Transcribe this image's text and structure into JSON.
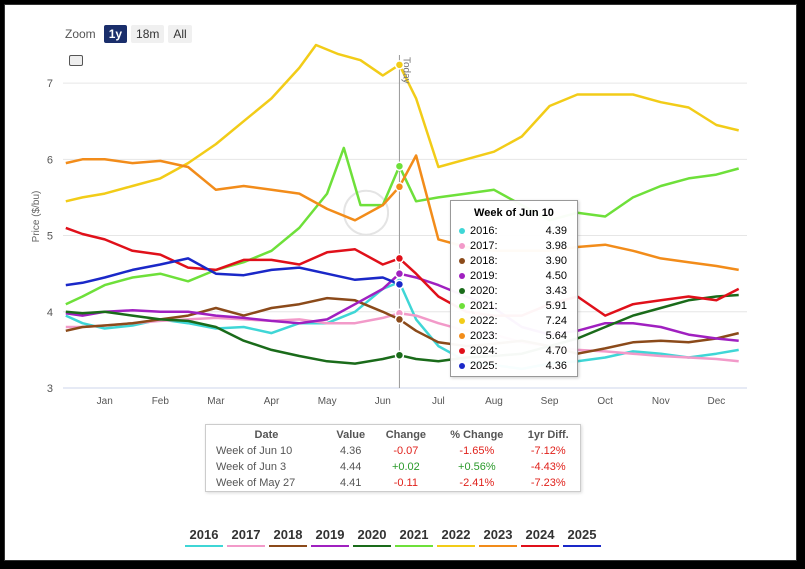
{
  "zoom": {
    "label": "Zoom",
    "buttons": [
      {
        "label": "1y",
        "active": true
      },
      {
        "label": "18m",
        "active": false
      },
      {
        "label": "All",
        "active": false
      }
    ]
  },
  "tooltip": {
    "title": "Week of Jun 10",
    "rows": [
      {
        "year": "2016:",
        "value": "4.39",
        "color": "#3fd6d6"
      },
      {
        "year": "2017:",
        "value": "3.98",
        "color": "#f29ac9"
      },
      {
        "year": "2018:",
        "value": "3.90",
        "color": "#8b4a1a"
      },
      {
        "year": "2019:",
        "value": "4.50",
        "color": "#a020c0"
      },
      {
        "year": "2020:",
        "value": "3.43",
        "color": "#1a6b1a"
      },
      {
        "year": "2021:",
        "value": "5.91",
        "color": "#6ee03a"
      },
      {
        "year": "2022:",
        "value": "7.24",
        "color": "#f2cc18"
      },
      {
        "year": "2023:",
        "value": "5.64",
        "color": "#f28c1a"
      },
      {
        "year": "2024:",
        "value": "4.70",
        "color": "#e0101a"
      },
      {
        "year": "2025:",
        "value": "4.36",
        "color": "#1a28c8"
      }
    ]
  },
  "stats": {
    "headers": [
      "Date",
      "Value",
      "Change",
      "% Change",
      "1yr Diff."
    ],
    "rows": [
      {
        "date": "Week of Jun 10",
        "value": "4.36",
        "change": "-0.07",
        "pct": "-1.65%",
        "yr": "-7.12%"
      },
      {
        "date": "Week of Jun 3",
        "value": "4.44",
        "change": "+0.02",
        "pct": "+0.56%",
        "yr": "-4.43%"
      },
      {
        "date": "Week of May 27",
        "value": "4.41",
        "change": "-0.11",
        "pct": "-2.41%",
        "yr": "-7.23%"
      }
    ]
  },
  "chart_data": {
    "type": "line",
    "ylabel": "Price ($/bu)",
    "ylim": [
      3,
      7.5
    ],
    "yticks": [
      3,
      4,
      5,
      6,
      7
    ],
    "x_months": [
      "Jan",
      "Feb",
      "Mar",
      "Apr",
      "May",
      "Jun",
      "Jul",
      "Aug",
      "Sep",
      "Oct",
      "Nov",
      "Dec"
    ],
    "today_label": "Today",
    "today_x": 5.3,
    "series": [
      {
        "name": "2016",
        "color": "#3fd6d6",
        "points": [
          [
            -0.7,
            3.95
          ],
          [
            -0.4,
            3.85
          ],
          [
            0,
            3.78
          ],
          [
            0.5,
            3.82
          ],
          [
            1,
            3.9
          ],
          [
            1.5,
            3.85
          ],
          [
            2,
            3.78
          ],
          [
            2.5,
            3.8
          ],
          [
            3,
            3.72
          ],
          [
            3.5,
            3.85
          ],
          [
            4,
            3.85
          ],
          [
            4.5,
            4.0
          ],
          [
            5,
            4.3
          ],
          [
            5.3,
            4.39
          ],
          [
            5.6,
            3.9
          ],
          [
            6,
            3.55
          ],
          [
            6.5,
            3.35
          ],
          [
            7,
            3.3
          ],
          [
            7.5,
            3.25
          ],
          [
            8,
            3.32
          ],
          [
            8.5,
            3.35
          ],
          [
            9,
            3.4
          ],
          [
            9.5,
            3.48
          ],
          [
            10,
            3.45
          ],
          [
            10.5,
            3.4
          ],
          [
            11,
            3.45
          ],
          [
            11.4,
            3.5
          ]
        ]
      },
      {
        "name": "2017",
        "color": "#f29ac9",
        "points": [
          [
            -0.7,
            3.8
          ],
          [
            -0.4,
            3.8
          ],
          [
            0,
            3.82
          ],
          [
            0.5,
            3.85
          ],
          [
            1,
            3.88
          ],
          [
            1.5,
            3.9
          ],
          [
            2,
            3.92
          ],
          [
            2.5,
            3.9
          ],
          [
            3,
            3.88
          ],
          [
            3.5,
            3.9
          ],
          [
            4,
            3.85
          ],
          [
            4.5,
            3.85
          ],
          [
            5,
            3.92
          ],
          [
            5.3,
            3.98
          ],
          [
            5.6,
            3.95
          ],
          [
            6,
            3.85
          ],
          [
            6.5,
            3.75
          ],
          [
            7,
            3.7
          ],
          [
            7.5,
            3.6
          ],
          [
            8,
            3.55
          ],
          [
            8.5,
            3.5
          ],
          [
            9,
            3.48
          ],
          [
            9.5,
            3.45
          ],
          [
            10,
            3.42
          ],
          [
            10.5,
            3.4
          ],
          [
            11,
            3.38
          ],
          [
            11.4,
            3.35
          ]
        ]
      },
      {
        "name": "2018",
        "color": "#8b4a1a",
        "points": [
          [
            -0.7,
            3.75
          ],
          [
            -0.4,
            3.8
          ],
          [
            0,
            3.82
          ],
          [
            0.5,
            3.85
          ],
          [
            1,
            3.9
          ],
          [
            1.5,
            3.95
          ],
          [
            2,
            4.05
          ],
          [
            2.5,
            3.95
          ],
          [
            3,
            4.05
          ],
          [
            3.5,
            4.1
          ],
          [
            4,
            4.18
          ],
          [
            4.5,
            4.15
          ],
          [
            5,
            4.0
          ],
          [
            5.3,
            3.9
          ],
          [
            5.6,
            3.75
          ],
          [
            6,
            3.6
          ],
          [
            6.5,
            3.55
          ],
          [
            7,
            3.58
          ],
          [
            7.5,
            3.62
          ],
          [
            8,
            3.55
          ],
          [
            8.5,
            3.45
          ],
          [
            9,
            3.52
          ],
          [
            9.5,
            3.6
          ],
          [
            10,
            3.62
          ],
          [
            10.5,
            3.6
          ],
          [
            11,
            3.65
          ],
          [
            11.4,
            3.72
          ]
        ]
      },
      {
        "name": "2019",
        "color": "#a020c0",
        "points": [
          [
            -0.7,
            3.98
          ],
          [
            -0.4,
            3.95
          ],
          [
            0,
            4.0
          ],
          [
            0.5,
            4.02
          ],
          [
            1,
            4.0
          ],
          [
            1.5,
            4.0
          ],
          [
            2,
            3.95
          ],
          [
            2.5,
            3.92
          ],
          [
            3,
            3.88
          ],
          [
            3.5,
            3.85
          ],
          [
            4,
            3.9
          ],
          [
            4.5,
            4.1
          ],
          [
            5,
            4.3
          ],
          [
            5.3,
            4.5
          ],
          [
            5.6,
            4.45
          ],
          [
            6,
            4.35
          ],
          [
            6.5,
            4.2
          ],
          [
            7,
            4.05
          ],
          [
            7.5,
            3.8
          ],
          [
            8,
            3.7
          ],
          [
            8.5,
            3.75
          ],
          [
            9,
            3.85
          ],
          [
            9.5,
            3.85
          ],
          [
            10,
            3.8
          ],
          [
            10.5,
            3.7
          ],
          [
            11,
            3.65
          ],
          [
            11.4,
            3.62
          ]
        ]
      },
      {
        "name": "2020",
        "color": "#1a6b1a",
        "points": [
          [
            -0.7,
            4.0
          ],
          [
            -0.4,
            3.98
          ],
          [
            0,
            4.0
          ],
          [
            0.5,
            3.95
          ],
          [
            1,
            3.9
          ],
          [
            1.5,
            3.88
          ],
          [
            2,
            3.8
          ],
          [
            2.5,
            3.62
          ],
          [
            3,
            3.5
          ],
          [
            3.5,
            3.42
          ],
          [
            4,
            3.35
          ],
          [
            4.5,
            3.32
          ],
          [
            5,
            3.38
          ],
          [
            5.3,
            3.43
          ],
          [
            5.6,
            3.38
          ],
          [
            6,
            3.35
          ],
          [
            6.5,
            3.4
          ],
          [
            7,
            3.42
          ],
          [
            7.5,
            3.45
          ],
          [
            8,
            3.55
          ],
          [
            8.5,
            3.65
          ],
          [
            9,
            3.8
          ],
          [
            9.5,
            3.95
          ],
          [
            10,
            4.05
          ],
          [
            10.5,
            4.15
          ],
          [
            11,
            4.2
          ],
          [
            11.4,
            4.22
          ]
        ]
      },
      {
        "name": "2021",
        "color": "#6ee03a",
        "points": [
          [
            -0.7,
            4.1
          ],
          [
            -0.4,
            4.2
          ],
          [
            0,
            4.35
          ],
          [
            0.5,
            4.45
          ],
          [
            1,
            4.5
          ],
          [
            1.5,
            4.4
          ],
          [
            2,
            4.55
          ],
          [
            2.5,
            4.65
          ],
          [
            3,
            4.8
          ],
          [
            3.5,
            5.1
          ],
          [
            4,
            5.55
          ],
          [
            4.3,
            6.15
          ],
          [
            4.6,
            5.4
          ],
          [
            5,
            5.4
          ],
          [
            5.3,
            5.91
          ],
          [
            5.6,
            5.45
          ],
          [
            6,
            5.5
          ],
          [
            6.5,
            5.55
          ],
          [
            7,
            5.6
          ],
          [
            7.5,
            5.4
          ],
          [
            8,
            5.2
          ],
          [
            8.5,
            5.3
          ],
          [
            9,
            5.25
          ],
          [
            9.5,
            5.5
          ],
          [
            10,
            5.65
          ],
          [
            10.5,
            5.75
          ],
          [
            11,
            5.8
          ],
          [
            11.4,
            5.88
          ]
        ]
      },
      {
        "name": "2022",
        "color": "#f2cc18",
        "points": [
          [
            -0.7,
            5.45
          ],
          [
            -0.4,
            5.5
          ],
          [
            0,
            5.55
          ],
          [
            0.5,
            5.65
          ],
          [
            1,
            5.75
          ],
          [
            1.5,
            5.95
          ],
          [
            2,
            6.2
          ],
          [
            2.5,
            6.5
          ],
          [
            3,
            6.8
          ],
          [
            3.5,
            7.2
          ],
          [
            3.8,
            7.5
          ],
          [
            4.2,
            7.38
          ],
          [
            4.6,
            7.3
          ],
          [
            5,
            7.1
          ],
          [
            5.3,
            7.24
          ],
          [
            5.6,
            6.8
          ],
          [
            6,
            5.9
          ],
          [
            6.5,
            6.0
          ],
          [
            7,
            6.1
          ],
          [
            7.5,
            6.3
          ],
          [
            8,
            6.7
          ],
          [
            8.5,
            6.85
          ],
          [
            9,
            6.85
          ],
          [
            9.5,
            6.85
          ],
          [
            10,
            6.75
          ],
          [
            10.5,
            6.68
          ],
          [
            11,
            6.45
          ],
          [
            11.4,
            6.38
          ]
        ]
      },
      {
        "name": "2023",
        "color": "#f28c1a",
        "points": [
          [
            -0.7,
            5.95
          ],
          [
            -0.4,
            6.0
          ],
          [
            0,
            6.0
          ],
          [
            0.5,
            5.95
          ],
          [
            1,
            5.98
          ],
          [
            1.5,
            5.9
          ],
          [
            2,
            5.6
          ],
          [
            2.5,
            5.65
          ],
          [
            3,
            5.6
          ],
          [
            3.5,
            5.55
          ],
          [
            4,
            5.35
          ],
          [
            4.5,
            5.2
          ],
          [
            5,
            5.4
          ],
          [
            5.3,
            5.64
          ],
          [
            5.6,
            6.05
          ],
          [
            6,
            4.95
          ],
          [
            6.5,
            4.85
          ],
          [
            7,
            4.8
          ],
          [
            7.5,
            4.8
          ],
          [
            8,
            4.8
          ],
          [
            8.5,
            4.85
          ],
          [
            9,
            4.88
          ],
          [
            9.5,
            4.8
          ],
          [
            10,
            4.7
          ],
          [
            10.5,
            4.65
          ],
          [
            11,
            4.6
          ],
          [
            11.4,
            4.55
          ]
        ]
      },
      {
        "name": "2024",
        "color": "#e0101a",
        "points": [
          [
            -0.7,
            5.1
          ],
          [
            -0.4,
            5.02
          ],
          [
            0,
            4.95
          ],
          [
            0.5,
            4.8
          ],
          [
            1,
            4.75
          ],
          [
            1.5,
            4.58
          ],
          [
            2,
            4.55
          ],
          [
            2.5,
            4.68
          ],
          [
            3,
            4.68
          ],
          [
            3.5,
            4.62
          ],
          [
            4,
            4.78
          ],
          [
            4.5,
            4.82
          ],
          [
            5,
            4.62
          ],
          [
            5.3,
            4.7
          ],
          [
            5.6,
            4.5
          ],
          [
            6,
            4.2
          ],
          [
            6.5,
            4.0
          ],
          [
            7,
            3.95
          ],
          [
            7.5,
            3.95
          ],
          [
            8,
            4.1
          ],
          [
            8.5,
            4.2
          ],
          [
            9,
            3.95
          ],
          [
            9.5,
            4.1
          ],
          [
            10,
            4.15
          ],
          [
            10.5,
            4.2
          ],
          [
            11,
            4.15
          ],
          [
            11.4,
            4.3
          ]
        ]
      },
      {
        "name": "2025",
        "color": "#1a28c8",
        "points": [
          [
            -0.7,
            4.35
          ],
          [
            -0.4,
            4.38
          ],
          [
            0,
            4.45
          ],
          [
            0.5,
            4.55
          ],
          [
            1,
            4.62
          ],
          [
            1.5,
            4.7
          ],
          [
            2,
            4.5
          ],
          [
            2.5,
            4.48
          ],
          [
            3,
            4.55
          ],
          [
            3.5,
            4.58
          ],
          [
            4,
            4.5
          ],
          [
            4.5,
            4.42
          ],
          [
            5,
            4.45
          ],
          [
            5.3,
            4.36
          ]
        ]
      }
    ]
  },
  "legend": {
    "items": [
      {
        "label": "2016",
        "color": "#3fd6d6"
      },
      {
        "label": "2017",
        "color": "#f29ac9"
      },
      {
        "label": "2018",
        "color": "#8b4a1a"
      },
      {
        "label": "2019",
        "color": "#a020c0"
      },
      {
        "label": "2020",
        "color": "#1a6b1a"
      },
      {
        "label": "2021",
        "color": "#6ee03a"
      },
      {
        "label": "2022",
        "color": "#f2cc18"
      },
      {
        "label": "2023",
        "color": "#f28c1a"
      },
      {
        "label": "2024",
        "color": "#e0101a"
      },
      {
        "label": "2025",
        "color": "#1a28c8"
      }
    ]
  }
}
